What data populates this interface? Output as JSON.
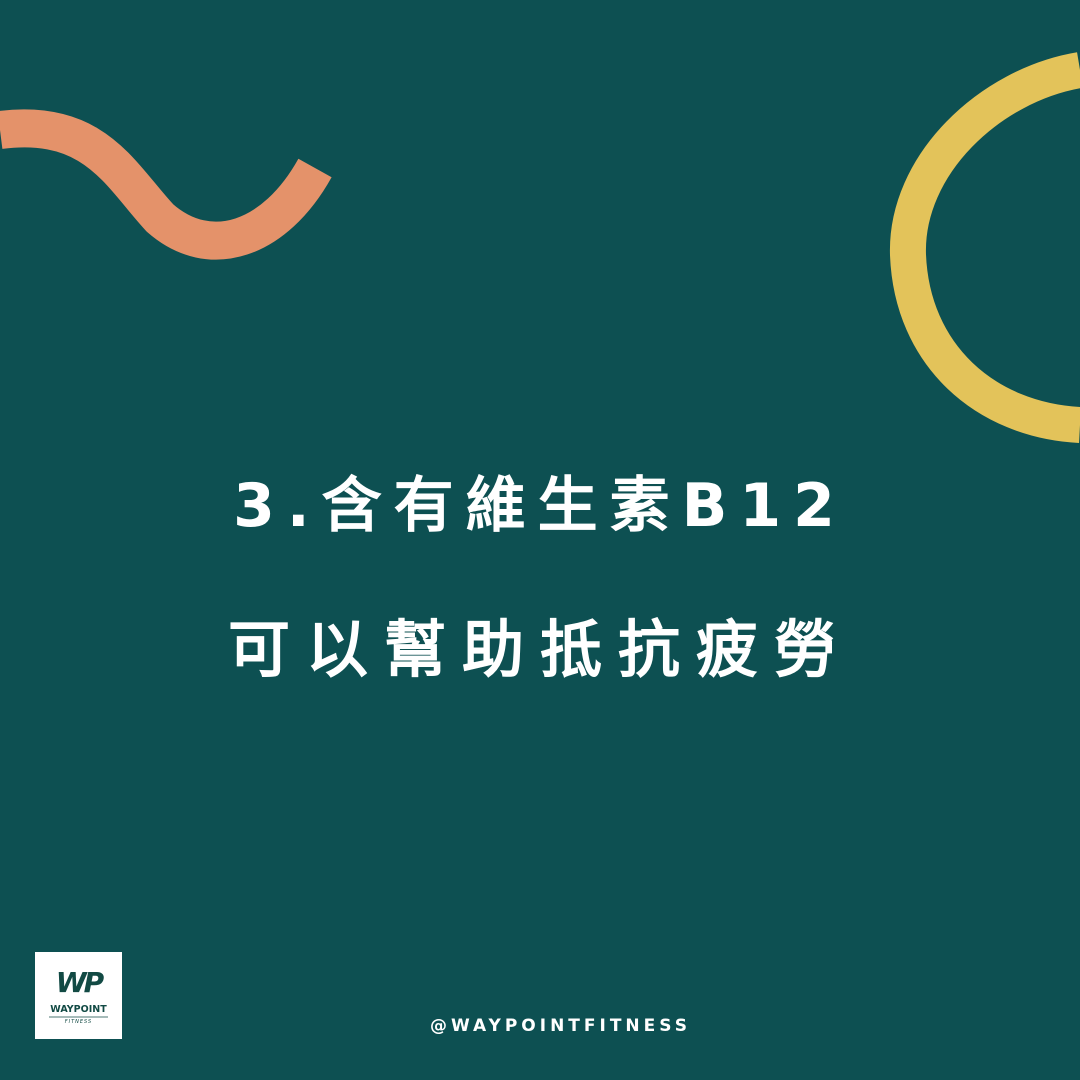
{
  "colors": {
    "background": "#0d5052",
    "orange_wave": "#e4926a",
    "yellow_ring": "#e3c35a",
    "text": "#ffffff",
    "logo_green": "#124a44"
  },
  "headline": {
    "line1": "3.含有維生素B12",
    "line2": "可以幫助抵抗疲勞"
  },
  "logo": {
    "monogram": "WP",
    "name": "WAYPOINT",
    "tagline": "FITNESS"
  },
  "social_handle": "@WAYPOINTFITNESS",
  "decorations": [
    "orange-wave",
    "yellow-ring"
  ]
}
